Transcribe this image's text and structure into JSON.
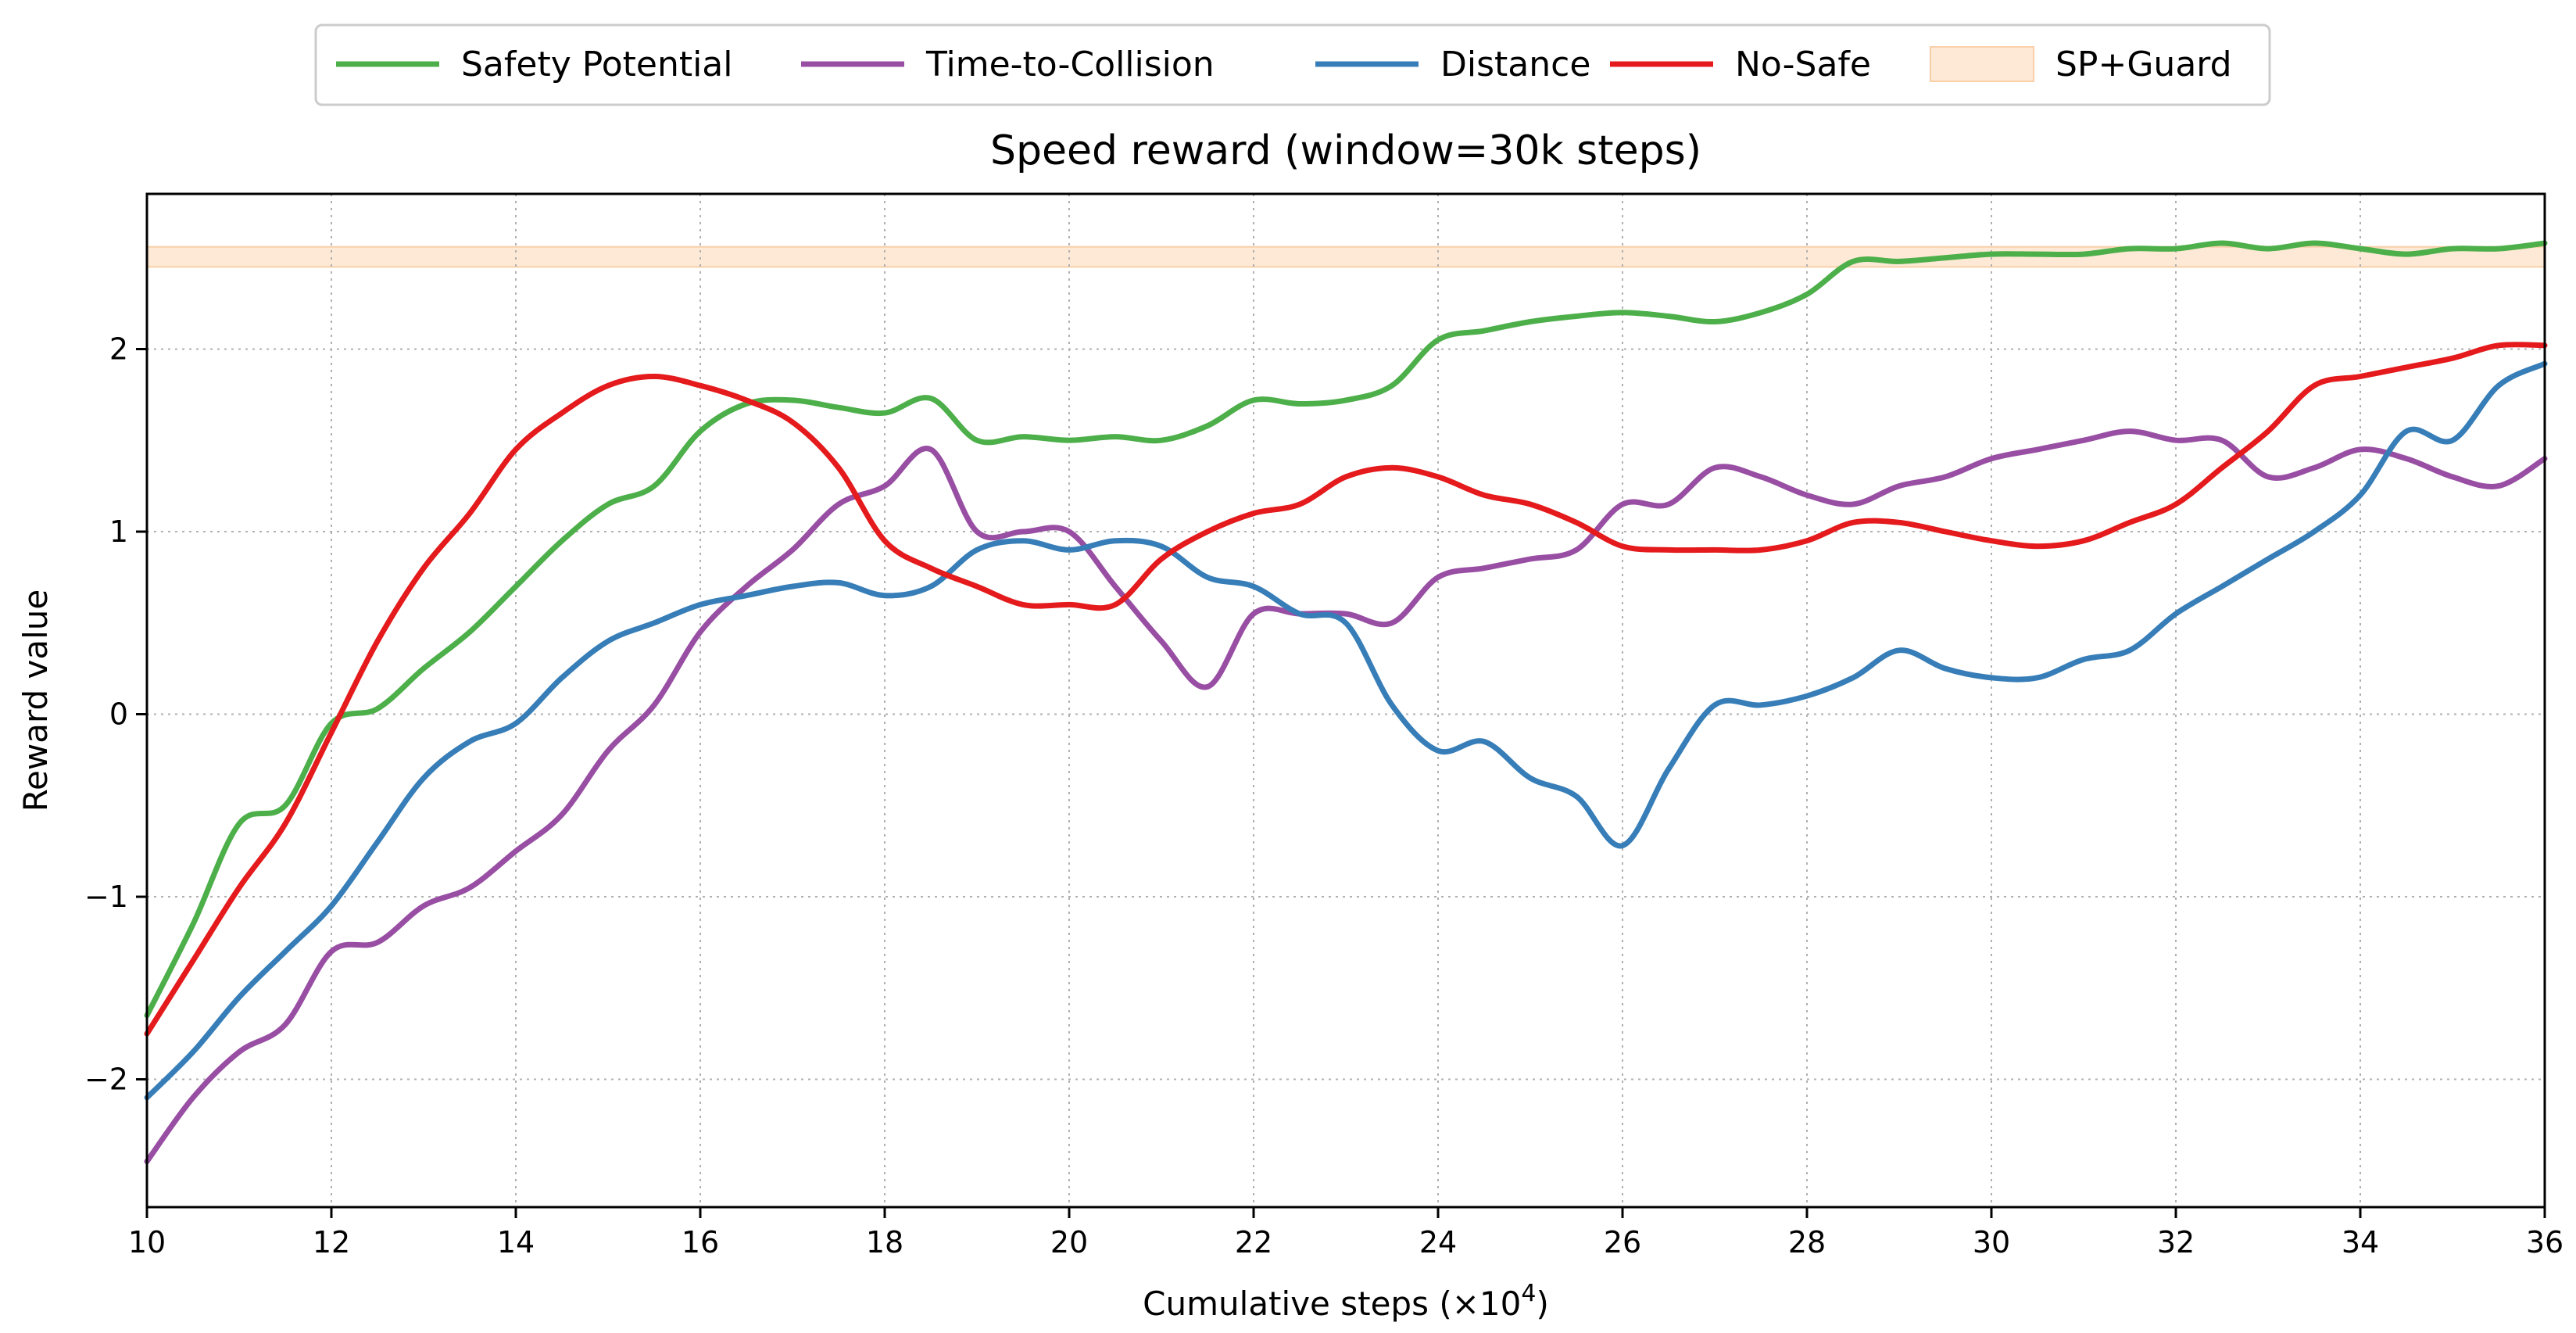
{
  "chart_data": {
    "type": "line",
    "title": "Speed reward (window=30k steps)",
    "xlabel": "Cumulative steps (×10",
    "xlabel_sup": "4",
    "xlabel_end": ")",
    "ylabel": "Reward value",
    "xlim": [
      10,
      36
    ],
    "ylim": [
      -2.7,
      2.85
    ],
    "x_ticks": [
      10,
      12,
      14,
      16,
      18,
      20,
      22,
      24,
      26,
      28,
      30,
      32,
      34,
      36
    ],
    "y_ticks": [
      -2,
      -1,
      0,
      1,
      2
    ],
    "y_tick_labels": [
      "−2",
      "−1",
      "0",
      "1",
      "2"
    ],
    "grid": true,
    "legend_position": "top-center",
    "band": {
      "name": "SP+Guard",
      "y_low": 2.45,
      "y_high": 2.56,
      "color": "#fde9d6",
      "edge": "#f9cfa8"
    },
    "series": [
      {
        "name": "Safety Potential",
        "color": "#4daf4a",
        "x": [
          10,
          10.5,
          11,
          11.5,
          12,
          12.5,
          13,
          13.5,
          14,
          14.5,
          15,
          15.5,
          16,
          16.5,
          17,
          17.5,
          18,
          18.5,
          19,
          19.5,
          20,
          20.5,
          21,
          21.5,
          22,
          22.5,
          23,
          23.5,
          24,
          24.5,
          25,
          25.5,
          26,
          26.5,
          27,
          27.5,
          28,
          28.5,
          29,
          29.5,
          30,
          30.5,
          31,
          31.5,
          32,
          32.5,
          33,
          33.5,
          34,
          34.5,
          35,
          35.5,
          36
        ],
        "y": [
          -1.65,
          -1.15,
          -0.6,
          -0.5,
          -0.05,
          0.03,
          0.25,
          0.45,
          0.7,
          0.95,
          1.15,
          1.25,
          1.55,
          1.7,
          1.72,
          1.68,
          1.65,
          1.73,
          1.5,
          1.52,
          1.5,
          1.52,
          1.5,
          1.58,
          1.72,
          1.7,
          1.72,
          1.8,
          2.05,
          2.1,
          2.15,
          2.18,
          2.2,
          2.18,
          2.15,
          2.2,
          2.3,
          2.48,
          2.48,
          2.5,
          2.52,
          2.52,
          2.52,
          2.55,
          2.55,
          2.58,
          2.55,
          2.58,
          2.55,
          2.52,
          2.55,
          2.55,
          2.58
        ]
      },
      {
        "name": "Time-to-Collision",
        "color": "#984ea3",
        "x": [
          10,
          10.5,
          11,
          11.5,
          12,
          12.5,
          13,
          13.5,
          14,
          14.5,
          15,
          15.5,
          16,
          16.5,
          17,
          17.5,
          18,
          18.5,
          19,
          19.5,
          20,
          20.5,
          21,
          21.5,
          22,
          22.5,
          23,
          23.5,
          24,
          24.5,
          25,
          25.5,
          26,
          26.5,
          27,
          27.5,
          28,
          28.5,
          29,
          29.5,
          30,
          30.5,
          31,
          31.5,
          32,
          32.5,
          33,
          33.5,
          34,
          34.5,
          35,
          35.5,
          36
        ],
        "y": [
          -2.45,
          -2.1,
          -1.85,
          -1.7,
          -1.3,
          -1.25,
          -1.05,
          -0.95,
          -0.75,
          -0.55,
          -0.2,
          0.05,
          0.45,
          0.7,
          0.9,
          1.15,
          1.25,
          1.45,
          1.0,
          1.0,
          1.0,
          0.7,
          0.4,
          0.15,
          0.55,
          0.55,
          0.55,
          0.5,
          0.75,
          0.8,
          0.85,
          0.9,
          1.15,
          1.15,
          1.35,
          1.3,
          1.2,
          1.15,
          1.25,
          1.3,
          1.4,
          1.45,
          1.5,
          1.55,
          1.5,
          1.5,
          1.3,
          1.35,
          1.45,
          1.4,
          1.3,
          1.25,
          1.4
        ]
      },
      {
        "name": "Distance",
        "color": "#377eb8",
        "x": [
          10,
          10.5,
          11,
          11.5,
          12,
          12.5,
          13,
          13.5,
          14,
          14.5,
          15,
          15.5,
          16,
          16.5,
          17,
          17.5,
          18,
          18.5,
          19,
          19.5,
          20,
          20.5,
          21,
          21.5,
          22,
          22.5,
          23,
          23.5,
          24,
          24.5,
          25,
          25.5,
          26,
          26.5,
          27,
          27.5,
          28,
          28.5,
          29,
          29.5,
          30,
          30.5,
          31,
          31.5,
          32,
          32.5,
          33,
          33.5,
          34,
          34.5,
          35,
          35.5,
          36
        ],
        "y": [
          -2.1,
          -1.85,
          -1.55,
          -1.3,
          -1.05,
          -0.7,
          -0.35,
          -0.15,
          -0.05,
          0.2,
          0.4,
          0.5,
          0.6,
          0.65,
          0.7,
          0.72,
          0.65,
          0.7,
          0.9,
          0.95,
          0.9,
          0.95,
          0.92,
          0.75,
          0.7,
          0.55,
          0.5,
          0.05,
          -0.2,
          -0.15,
          -0.35,
          -0.45,
          -0.72,
          -0.3,
          0.05,
          0.05,
          0.1,
          0.2,
          0.35,
          0.25,
          0.2,
          0.2,
          0.3,
          0.35,
          0.55,
          0.7,
          0.85,
          1.0,
          1.2,
          1.55,
          1.5,
          1.8,
          1.92
        ]
      },
      {
        "name": "No-Safe",
        "color": "#e41a1c",
        "x": [
          10,
          10.5,
          11,
          11.5,
          12,
          12.5,
          13,
          13.5,
          14,
          14.5,
          15,
          15.5,
          16,
          16.5,
          17,
          17.5,
          18,
          18.5,
          19,
          19.5,
          20,
          20.5,
          21,
          21.5,
          22,
          22.5,
          23,
          23.5,
          24,
          24.5,
          25,
          25.5,
          26,
          26.5,
          27,
          27.5,
          28,
          28.5,
          29,
          29.5,
          30,
          30.5,
          31,
          31.5,
          32,
          32.5,
          33,
          33.5,
          34,
          34.5,
          35,
          35.5,
          36
        ],
        "y": [
          -1.75,
          -1.35,
          -0.95,
          -0.6,
          -0.1,
          0.4,
          0.8,
          1.1,
          1.45,
          1.65,
          1.8,
          1.85,
          1.8,
          1.72,
          1.6,
          1.35,
          0.95,
          0.8,
          0.7,
          0.6,
          0.6,
          0.6,
          0.85,
          1.0,
          1.1,
          1.15,
          1.3,
          1.35,
          1.3,
          1.2,
          1.15,
          1.05,
          0.92,
          0.9,
          0.9,
          0.9,
          0.95,
          1.05,
          1.05,
          1.0,
          0.95,
          0.92,
          0.95,
          1.05,
          1.15,
          1.35,
          1.55,
          1.8,
          1.85,
          1.9,
          1.95,
          2.02,
          2.02
        ]
      }
    ]
  }
}
